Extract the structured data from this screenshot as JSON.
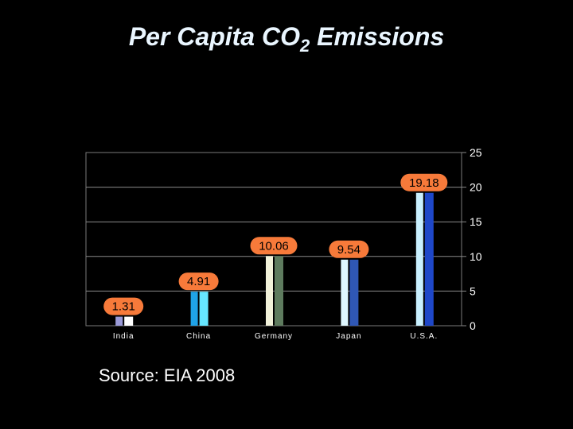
{
  "title": {
    "main": "Per Capita CO",
    "sub": "2",
    "rest": " Emissions"
  },
  "source": "Source: EIA 2008",
  "chart_data": {
    "type": "bar",
    "categories": [
      "India",
      "China",
      "Germany",
      "Japan",
      "U.S.A."
    ],
    "values": [
      1.31,
      4.91,
      10.06,
      9.54,
      19.18
    ],
    "data_labels": [
      "1.31",
      "4.91",
      "10.06",
      "9.54",
      "19.18"
    ],
    "ylim": [
      0,
      25
    ],
    "yticks": [
      "0",
      "5",
      "10",
      "15",
      "20",
      "25"
    ],
    "y_axis_side": "right",
    "grid": true,
    "colors": {
      "India": [
        "#9a9ad8",
        "#ffffff"
      ],
      "China": [
        "#1fa3e8",
        "#66e6ff"
      ],
      "Germany": [
        "#f2f2da",
        "#5e7b5e"
      ],
      "Japan": [
        "#dff8ff",
        "#2f57b5"
      ],
      "U.S.A.": [
        "#c9f0ff",
        "#1e47c8"
      ]
    },
    "label_bubble_color": "#f77a3a"
  }
}
